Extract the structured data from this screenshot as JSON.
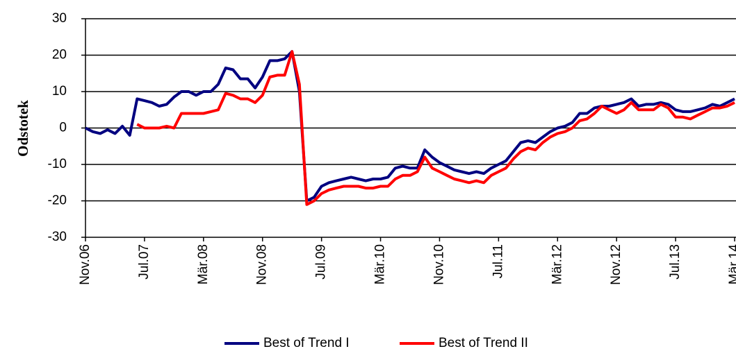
{
  "chart_data": {
    "type": "line",
    "y_label": "Odstotek",
    "categories": [
      "Nov.06",
      null,
      null,
      null,
      null,
      null,
      null,
      null,
      "Jul.07",
      null,
      null,
      null,
      null,
      null,
      null,
      null,
      "Mär.08",
      null,
      null,
      null,
      null,
      null,
      null,
      null,
      "Nov.08",
      null,
      null,
      null,
      null,
      null,
      null,
      null,
      "Jul.09",
      null,
      null,
      null,
      null,
      null,
      null,
      null,
      "Mär.10",
      null,
      null,
      null,
      null,
      null,
      null,
      null,
      "Nov.10",
      null,
      null,
      null,
      null,
      null,
      null,
      null,
      "Jul.11",
      null,
      null,
      null,
      null,
      null,
      null,
      null,
      "Mär.12",
      null,
      null,
      null,
      null,
      null,
      null,
      null,
      "Nov.12",
      null,
      null,
      null,
      null,
      null,
      null,
      null,
      "Jul.13",
      null,
      null,
      null,
      null,
      null,
      null,
      null,
      "Mär.14"
    ],
    "series": [
      {
        "name": "Best of Trend I",
        "color": "#000080",
        "values": [
          0,
          -1,
          -1.5,
          -0.5,
          -1.5,
          0.5,
          -2,
          8,
          7.5,
          7,
          6,
          6.5,
          8.5,
          10,
          10,
          9,
          10,
          10,
          12,
          16.5,
          16,
          13.5,
          13.5,
          11,
          14,
          18.5,
          18.5,
          19,
          21,
          10,
          -20,
          -19,
          -16,
          -15,
          -14.5,
          -14,
          -13.5,
          -14,
          -14.5,
          -14,
          -14,
          -13.5,
          -11,
          -10.5,
          -11,
          -11,
          -6,
          -8,
          -9.5,
          -10.5,
          -11.5,
          -12,
          -12.5,
          -12,
          -12.5,
          -11,
          -10,
          -9,
          -6.5,
          -4,
          -3.5,
          -4,
          -2.5,
          -1,
          0,
          0.5,
          1.5,
          4,
          4,
          5.5,
          6,
          6,
          6.5,
          7,
          8,
          6,
          6.5,
          6.5,
          7,
          6.5,
          5,
          4.5,
          4.5,
          5,
          5.5,
          6.5,
          6,
          7,
          8
        ]
      },
      {
        "name": "Best of Trend II",
        "color": "#ff0000",
        "values": [
          null,
          null,
          null,
          null,
          null,
          null,
          null,
          1,
          0,
          0,
          0,
          0.5,
          0,
          4,
          4,
          4,
          4,
          4.5,
          5,
          9.5,
          9,
          8,
          8,
          7,
          9,
          14,
          14.5,
          14.5,
          21,
          12,
          -21,
          -20,
          -18,
          -17,
          -16.5,
          -16,
          -16,
          -16,
          -16.5,
          -16.5,
          -16,
          -16,
          -14,
          -13,
          -13,
          -12,
          -8,
          -11,
          -12,
          -13,
          -14,
          -14.5,
          -15,
          -14.5,
          -15,
          -13,
          -12,
          -11,
          -8.5,
          -6.5,
          -5.5,
          -6,
          -4,
          -2.5,
          -1.5,
          -1,
          0,
          2,
          2.5,
          4,
          6,
          5,
          4,
          5,
          7,
          5,
          5,
          5,
          6.5,
          5.5,
          3,
          3,
          2.5,
          3.5,
          4.5,
          5.5,
          5.5,
          6,
          7
        ]
      }
    ],
    "ylim": [
      -30,
      30
    ],
    "yticks": [
      -30,
      -20,
      -10,
      0,
      10,
      20,
      30
    ],
    "grid": true,
    "legend": "bottom"
  }
}
